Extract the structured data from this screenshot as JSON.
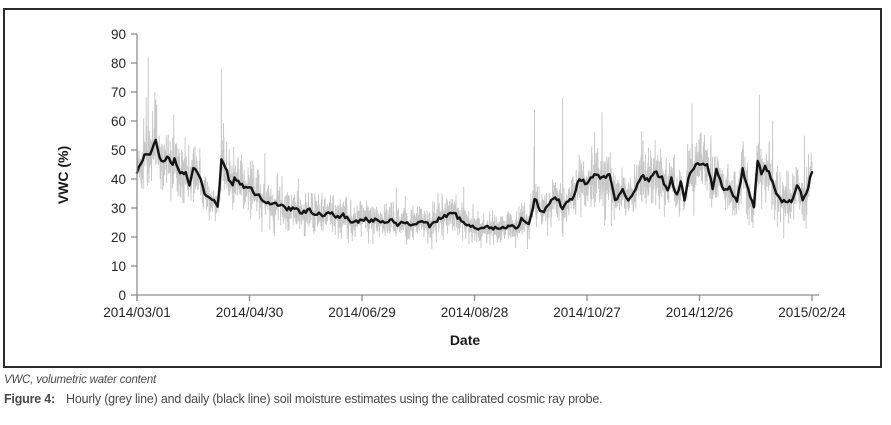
{
  "figure": {
    "note": "VWC, volumetric water content",
    "label": "Figure 4:",
    "caption": "Hourly (grey line) and daily (black line) soil moisture estimates using the calibrated cosmic ray probe."
  },
  "chart_data": {
    "type": "line",
    "title": "",
    "xlabel": "Date",
    "ylabel": "VWC (%)",
    "start_date": "2014/03/01",
    "x_tick_labels": [
      "2014/03/01",
      "2014/04/30",
      "2014/06/29",
      "2014/08/28",
      "2014/10/27",
      "2014/12/26",
      "2015/02/24"
    ],
    "x_tick_days": [
      0,
      60,
      120,
      180,
      240,
      300,
      360
    ],
    "y_ticks": [
      0,
      10,
      20,
      30,
      40,
      50,
      60,
      70,
      80,
      90
    ],
    "ylim": [
      0,
      90
    ],
    "grid": false,
    "legend": "none",
    "noise_seed": 987654321,
    "daily_jitter": 0.8,
    "peak_spikes": [
      [
        6,
        82
      ],
      [
        45,
        78
      ],
      [
        212,
        64
      ],
      [
        227,
        68
      ],
      [
        248,
        63
      ],
      [
        296,
        66
      ],
      [
        339,
        60
      ],
      [
        356,
        55
      ]
    ],
    "series": [
      {
        "name": "Hourly",
        "color": "#c7c7c7",
        "style": "noisy-derived-from-daily",
        "noise_fraction": 0.3,
        "spike_fraction": 0.6,
        "spike_probability": 0.004
      },
      {
        "name": "Daily",
        "color": "#141414",
        "points": [
          [
            0,
            42.4
          ],
          [
            2,
            44.5
          ],
          [
            4,
            48.3
          ],
          [
            7,
            49.0
          ],
          [
            10,
            52.8
          ],
          [
            11,
            50.0
          ],
          [
            13,
            45.9
          ],
          [
            16,
            47.6
          ],
          [
            19,
            44.7
          ],
          [
            20,
            46.4
          ],
          [
            23,
            41.2
          ],
          [
            26,
            42.4
          ],
          [
            28,
            38.4
          ],
          [
            30,
            43.5
          ],
          [
            33,
            41.2
          ],
          [
            36,
            35.5
          ],
          [
            38,
            33.8
          ],
          [
            40,
            33.2
          ],
          [
            43,
            30.9
          ],
          [
            44,
            36.7
          ],
          [
            45,
            46.4
          ],
          [
            47,
            44.7
          ],
          [
            49,
            39.6
          ],
          [
            51,
            38.4
          ],
          [
            52,
            40.6
          ],
          [
            55,
            38.9
          ],
          [
            58,
            36.7
          ],
          [
            60,
            37.8
          ],
          [
            62,
            34.9
          ],
          [
            65,
            34.3
          ],
          [
            68,
            32.6
          ],
          [
            70,
            32.0
          ],
          [
            73,
            30.9
          ],
          [
            76,
            31.4
          ],
          [
            78,
            30.3
          ],
          [
            81,
            29.7
          ],
          [
            84,
            30.3
          ],
          [
            86,
            29.1
          ],
          [
            89,
            28.6
          ],
          [
            92,
            29.1
          ],
          [
            96,
            28.0
          ],
          [
            100,
            27.4
          ],
          [
            103,
            28.3
          ],
          [
            107,
            26.9
          ],
          [
            110,
            27.4
          ],
          [
            114,
            25.7
          ],
          [
            117,
            25.2
          ],
          [
            121,
            26.3
          ],
          [
            124,
            25.2
          ],
          [
            128,
            25.7
          ],
          [
            132,
            24.6
          ],
          [
            135,
            25.7
          ],
          [
            139,
            24.6
          ],
          [
            142,
            25.2
          ],
          [
            146,
            24.0
          ],
          [
            149,
            25.2
          ],
          [
            153,
            24.6
          ],
          [
            156,
            24.0
          ],
          [
            160,
            25.7
          ],
          [
            164,
            26.9
          ],
          [
            166,
            28.0
          ],
          [
            168,
            28.6
          ],
          [
            171,
            26.9
          ],
          [
            174,
            25.2
          ],
          [
            178,
            24.0
          ],
          [
            181,
            23.4
          ],
          [
            185,
            22.9
          ],
          [
            188,
            23.4
          ],
          [
            192,
            22.9
          ],
          [
            196,
            23.1
          ],
          [
            199,
            24.0
          ],
          [
            203,
            23.4
          ],
          [
            205,
            25.9
          ],
          [
            209,
            24.5
          ],
          [
            212,
            33.1
          ],
          [
            216,
            28.6
          ],
          [
            220,
            31.0
          ],
          [
            223,
            34.4
          ],
          [
            227,
            30.0
          ],
          [
            232,
            33.0
          ],
          [
            236,
            40.1
          ],
          [
            240,
            38.5
          ],
          [
            244,
            41.8
          ],
          [
            248,
            40.0
          ],
          [
            252,
            41.8
          ],
          [
            255,
            32.1
          ],
          [
            259,
            36.2
          ],
          [
            262,
            33.0
          ],
          [
            266,
            36.0
          ],
          [
            269,
            41.4
          ],
          [
            273,
            39.0
          ],
          [
            276,
            42.4
          ],
          [
            280,
            40.7
          ],
          [
            283,
            35.5
          ],
          [
            285,
            40.1
          ],
          [
            288,
            34.3
          ],
          [
            290,
            39.0
          ],
          [
            292,
            33.2
          ],
          [
            294,
            40.1
          ],
          [
            298,
            45.3
          ],
          [
            304,
            45.3
          ],
          [
            307,
            36.7
          ],
          [
            309,
            43.6
          ],
          [
            313,
            35.5
          ],
          [
            316,
            36.7
          ],
          [
            320,
            32.1
          ],
          [
            323,
            43.0
          ],
          [
            325,
            39.0
          ],
          [
            329,
            29.8
          ],
          [
            331,
            46.4
          ],
          [
            333,
            42.4
          ],
          [
            335,
            44.1
          ],
          [
            339,
            39.5
          ],
          [
            340,
            36.1
          ],
          [
            344,
            32.1
          ],
          [
            347,
            32.6
          ],
          [
            349,
            32.1
          ],
          [
            352,
            38.4
          ],
          [
            355,
            33.2
          ],
          [
            357,
            34.3
          ],
          [
            360,
            43.0
          ]
        ]
      }
    ]
  },
  "axis_style": {
    "axis_color": "#8e8e8e",
    "tick_label_color": "#262626",
    "figure_border_color": "#2b2b2b"
  }
}
